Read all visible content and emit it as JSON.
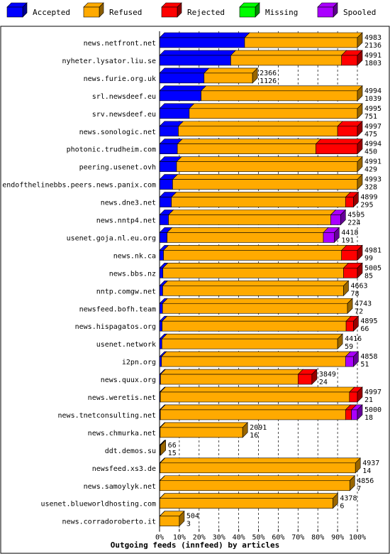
{
  "colors": {
    "accepted": "#0000ff",
    "refused": "#ffaa00",
    "rejected": "#ff0000",
    "missing": "#00ff00",
    "spooled": "#aa00ff"
  },
  "legend": [
    {
      "key": "accepted",
      "label": "Accepted"
    },
    {
      "key": "refused",
      "label": "Refused"
    },
    {
      "key": "rejected",
      "label": "Rejected"
    },
    {
      "key": "missing",
      "label": "Missing"
    },
    {
      "key": "spooled",
      "label": "Spooled"
    }
  ],
  "chart_data": {
    "type": "bar",
    "orientation": "horizontal",
    "stacked": true,
    "title": "Outgoing feeds (innfeed) by articles",
    "xlim": [
      0,
      100
    ],
    "x_ticks": [
      "0%",
      "10%",
      "20%",
      "30%",
      "40%",
      "50%",
      "60%",
      "70%",
      "80%",
      "90%",
      "100%"
    ],
    "grid": "vertical dashed",
    "legend_position": "top",
    "series_order": [
      "accepted",
      "refused",
      "rejected",
      "missing",
      "spooled"
    ],
    "rows": [
      {
        "host": "news.netfront.net",
        "offered": "4983",
        "accepted_count": "2136",
        "accepted": 43,
        "refused": 57,
        "rejected": 0,
        "missing": 0,
        "spooled": 0
      },
      {
        "host": "nyheter.lysator.liu.se",
        "offered": "4991",
        "accepted_count": "1803",
        "accepted": 36,
        "refused": 56,
        "rejected": 8,
        "missing": 0,
        "spooled": 0
      },
      {
        "host": "news.furie.org.uk",
        "offered": "2366",
        "accepted_count": "1126",
        "accepted": 22.5,
        "refused": 24.5,
        "rejected": 0,
        "missing": 0,
        "spooled": 0
      },
      {
        "host": "srl.newsdeef.eu",
        "offered": "4994",
        "accepted_count": "1039",
        "accepted": 21,
        "refused": 79,
        "rejected": 0,
        "missing": 0,
        "spooled": 0
      },
      {
        "host": "srv.newsdeef.eu",
        "offered": "4995",
        "accepted_count": "751",
        "accepted": 15,
        "refused": 85,
        "rejected": 0,
        "missing": 0,
        "spooled": 0
      },
      {
        "host": "news.sonologic.net",
        "offered": "4997",
        "accepted_count": "475",
        "accepted": 9.5,
        "refused": 80.5,
        "rejected": 10,
        "missing": 0,
        "spooled": 0
      },
      {
        "host": "photonic.trudheim.com",
        "offered": "4994",
        "accepted_count": "450",
        "accepted": 9,
        "refused": 70,
        "rejected": 21,
        "missing": 0,
        "spooled": 0
      },
      {
        "host": "peering.usenet.ovh",
        "offered": "4991",
        "accepted_count": "429",
        "accepted": 8.6,
        "refused": 91.4,
        "rejected": 0,
        "missing": 0,
        "spooled": 0
      },
      {
        "host": "endofthelinebbs.peers.news.panix.com",
        "offered": "4993",
        "accepted_count": "328",
        "accepted": 6.6,
        "refused": 93.4,
        "rejected": 0,
        "missing": 0,
        "spooled": 0
      },
      {
        "host": "news.dne3.net",
        "offered": "4899",
        "accepted_count": "295",
        "accepted": 6,
        "refused": 88,
        "rejected": 4,
        "missing": 0,
        "spooled": 0
      },
      {
        "host": "news.nntp4.net",
        "offered": "4595",
        "accepted_count": "224",
        "accepted": 4.5,
        "refused": 82,
        "rejected": 0,
        "missing": 0,
        "spooled": 5
      },
      {
        "host": "usenet.goja.nl.eu.org",
        "offered": "4418",
        "accepted_count": "191",
        "accepted": 3.8,
        "refused": 79,
        "rejected": 0,
        "missing": 0,
        "spooled": 5.5
      },
      {
        "host": "news.nk.ca",
        "offered": "4981",
        "accepted_count": "99",
        "accepted": 2,
        "refused": 90,
        "rejected": 8,
        "missing": 0,
        "spooled": 0
      },
      {
        "host": "news.bbs.nz",
        "offered": "5005",
        "accepted_count": "85",
        "accepted": 1.7,
        "refused": 91.3,
        "rejected": 7,
        "missing": 0,
        "spooled": 0
      },
      {
        "host": "nntp.comgw.net",
        "offered": "4663",
        "accepted_count": "78",
        "accepted": 1.6,
        "refused": 91.4,
        "rejected": 0,
        "missing": 0,
        "spooled": 0
      },
      {
        "host": "newsfeed.bofh.team",
        "offered": "4743",
        "accepted_count": "72",
        "accepted": 1.5,
        "refused": 93.5,
        "rejected": 0,
        "missing": 0,
        "spooled": 0
      },
      {
        "host": "news.hispagatos.org",
        "offered": "4895",
        "accepted_count": "66",
        "accepted": 1.3,
        "refused": 93,
        "rejected": 3.7,
        "missing": 0,
        "spooled": 0
      },
      {
        "host": "usenet.network",
        "offered": "4416",
        "accepted_count": "59",
        "accepted": 1.2,
        "refused": 88.8,
        "rejected": 0,
        "missing": 0,
        "spooled": 0
      },
      {
        "host": "i2pn.org",
        "offered": "4858",
        "accepted_count": "51",
        "accepted": 1,
        "refused": 93,
        "rejected": 0,
        "missing": 0,
        "spooled": 4
      },
      {
        "host": "news.quux.org",
        "offered": "3849",
        "accepted_count": "24",
        "accepted": 0.5,
        "refused": 69.5,
        "rejected": 7,
        "missing": 0,
        "spooled": 0
      },
      {
        "host": "news.weretis.net",
        "offered": "4997",
        "accepted_count": "21",
        "accepted": 0.4,
        "refused": 95.6,
        "rejected": 4,
        "missing": 0,
        "spooled": 0
      },
      {
        "host": "news.tnetconsulting.net",
        "offered": "5000",
        "accepted_count": "18",
        "accepted": 0.4,
        "refused": 93.6,
        "rejected": 3,
        "missing": 0,
        "spooled": 3
      },
      {
        "host": "news.chmurka.net",
        "offered": "2091",
        "accepted_count": "16",
        "accepted": 0.3,
        "refused": 41.7,
        "rejected": 0,
        "missing": 0,
        "spooled": 0
      },
      {
        "host": "ddt.demos.su",
        "offered": "66",
        "accepted_count": "15",
        "accepted": 0.3,
        "refused": 0.3,
        "rejected": 0,
        "missing": 0,
        "spooled": 0
      },
      {
        "host": "newsfeed.xs3.de",
        "offered": "4937",
        "accepted_count": "14",
        "accepted": 0.3,
        "refused": 98.7,
        "rejected": 0,
        "missing": 0,
        "spooled": 0
      },
      {
        "host": "news.samoylyk.net",
        "offered": "4856",
        "accepted_count": "7",
        "accepted": 0.15,
        "refused": 96,
        "rejected": 0,
        "missing": 0,
        "spooled": 0
      },
      {
        "host": "usenet.blueworldhosting.com",
        "offered": "4378",
        "accepted_count": "6",
        "accepted": 0.1,
        "refused": 87.5,
        "rejected": 0,
        "missing": 0,
        "spooled": 0
      },
      {
        "host": "news.corradoroberto.it",
        "offered": "504",
        "accepted_count": "3",
        "accepted": 0.1,
        "refused": 9.9,
        "rejected": 0,
        "missing": 0,
        "spooled": 0
      }
    ]
  }
}
